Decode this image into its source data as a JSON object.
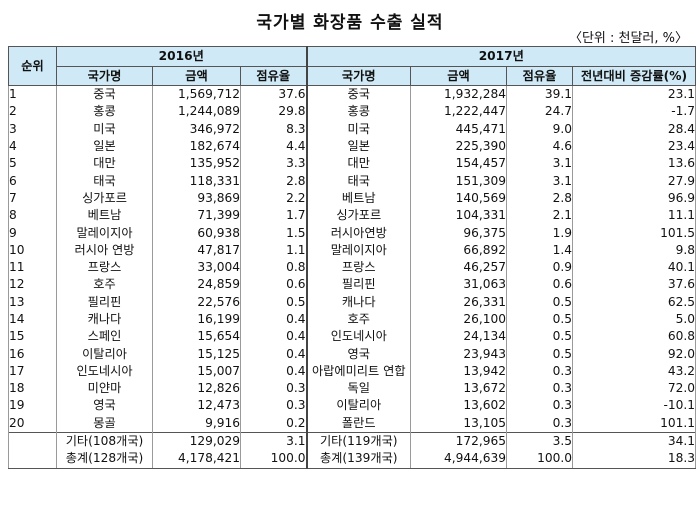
{
  "title": "국가별 화장품 수출 실적",
  "unit": "〈단위 : 천달러, %〉",
  "headers": {
    "rank": "순위",
    "year1": "2016년",
    "year2": "2017년",
    "country": "국가명",
    "amount": "금액",
    "share": "점유율",
    "change": "전년대비 증감률(%)"
  },
  "rows": [
    {
      "rank": "1",
      "c16": "중국",
      "a16": "1,569,712",
      "s16": "37.6",
      "c17": "중국",
      "a17": "1,932,284",
      "s17": "39.1",
      "g": "23.1"
    },
    {
      "rank": "2",
      "c16": "홍콩",
      "a16": "1,244,089",
      "s16": "29.8",
      "c17": "홍콩",
      "a17": "1,222,447",
      "s17": "24.7",
      "g": "-1.7"
    },
    {
      "rank": "3",
      "c16": "미국",
      "a16": "346,972",
      "s16": "8.3",
      "c17": "미국",
      "a17": "445,471",
      "s17": "9.0",
      "g": "28.4"
    },
    {
      "rank": "4",
      "c16": "일본",
      "a16": "182,674",
      "s16": "4.4",
      "c17": "일본",
      "a17": "225,390",
      "s17": "4.6",
      "g": "23.4"
    },
    {
      "rank": "5",
      "c16": "대만",
      "a16": "135,952",
      "s16": "3.3",
      "c17": "대만",
      "a17": "154,457",
      "s17": "3.1",
      "g": "13.6"
    },
    {
      "rank": "6",
      "c16": "태국",
      "a16": "118,331",
      "s16": "2.8",
      "c17": "태국",
      "a17": "151,309",
      "s17": "3.1",
      "g": "27.9"
    },
    {
      "rank": "7",
      "c16": "싱가포르",
      "a16": "93,869",
      "s16": "2.2",
      "c17": "베트남",
      "a17": "140,569",
      "s17": "2.8",
      "g": "96.9"
    },
    {
      "rank": "8",
      "c16": "베트남",
      "a16": "71,399",
      "s16": "1.7",
      "c17": "싱가포르",
      "a17": "104,331",
      "s17": "2.1",
      "g": "11.1"
    },
    {
      "rank": "9",
      "c16": "말레이지아",
      "a16": "60,938",
      "s16": "1.5",
      "c17": "러시아연방",
      "a17": "96,375",
      "s17": "1.9",
      "g": "101.5"
    },
    {
      "rank": "10",
      "c16": "러시아 연방",
      "a16": "47,817",
      "s16": "1.1",
      "c17": "말레이지아",
      "a17": "66,892",
      "s17": "1.4",
      "g": "9.8"
    },
    {
      "rank": "11",
      "c16": "프랑스",
      "a16": "33,004",
      "s16": "0.8",
      "c17": "프랑스",
      "a17": "46,257",
      "s17": "0.9",
      "g": "40.1"
    },
    {
      "rank": "12",
      "c16": "호주",
      "a16": "24,859",
      "s16": "0.6",
      "c17": "필리핀",
      "a17": "31,063",
      "s17": "0.6",
      "g": "37.6"
    },
    {
      "rank": "13",
      "c16": "필리핀",
      "a16": "22,576",
      "s16": "0.5",
      "c17": "캐나다",
      "a17": "26,331",
      "s17": "0.5",
      "g": "62.5"
    },
    {
      "rank": "14",
      "c16": "캐나다",
      "a16": "16,199",
      "s16": "0.4",
      "c17": "호주",
      "a17": "26,100",
      "s17": "0.5",
      "g": "5.0"
    },
    {
      "rank": "15",
      "c16": "스페인",
      "a16": "15,654",
      "s16": "0.4",
      "c17": "인도네시아",
      "a17": "24,134",
      "s17": "0.5",
      "g": "60.8"
    },
    {
      "rank": "16",
      "c16": "이탈리아",
      "a16": "15,125",
      "s16": "0.4",
      "c17": "영국",
      "a17": "23,943",
      "s17": "0.5",
      "g": "92.0"
    },
    {
      "rank": "17",
      "c16": "인도네시아",
      "a16": "15,007",
      "s16": "0.4",
      "c17": "아랍에미리트 연합",
      "a17": "13,942",
      "s17": "0.3",
      "g": "43.2"
    },
    {
      "rank": "18",
      "c16": "미얀마",
      "a16": "12,826",
      "s16": "0.3",
      "c17": "독일",
      "a17": "13,672",
      "s17": "0.3",
      "g": "72.0"
    },
    {
      "rank": "19",
      "c16": "영국",
      "a16": "12,473",
      "s16": "0.3",
      "c17": "이탈리아",
      "a17": "13,602",
      "s17": "0.3",
      "g": "-10.1"
    },
    {
      "rank": "20",
      "c16": "몽골",
      "a16": "9,916",
      "s16": "0.2",
      "c17": "폴란드",
      "a17": "13,105",
      "s17": "0.3",
      "g": "101.1"
    },
    {
      "rank": "",
      "c16": "기타(108개국)",
      "a16": "129,029",
      "s16": "3.1",
      "c17": "기타(119개국)",
      "a17": "172,965",
      "s17": "3.5",
      "g": "34.1"
    },
    {
      "rank": "",
      "c16": "총계(128개국)",
      "a16": "4,178,421",
      "s16": "100.0",
      "c17": "총계(139개국)",
      "a17": "4,944,639",
      "s17": "100.0",
      "g": "18.3"
    }
  ]
}
